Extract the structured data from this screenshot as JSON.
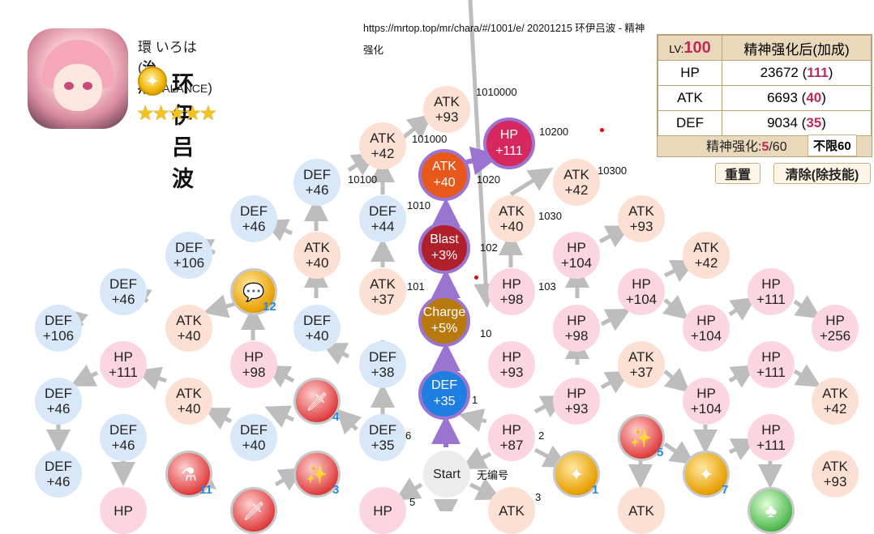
{
  "character": {
    "name_jp": "環 いろは",
    "role": "治疗",
    "type": "/BALANCE",
    "name_cn": "环伊吕波",
    "attribute_glyph": "✦",
    "stars": "★★★★★"
  },
  "url_text": "https://mrtop.top/mr/chara/#/1001/e/ 20201215 环伊吕波 - 精神强化",
  "stats": {
    "lv_label": "LV:",
    "lv_value": "100",
    "header": "精神强化后(加成)",
    "rows": [
      {
        "name": "HP",
        "value": "23672",
        "bonus": "111"
      },
      {
        "name": "ATK",
        "value": "6693",
        "bonus": "40"
      },
      {
        "name": "DEF",
        "value": "9034",
        "bonus": "35"
      }
    ],
    "enhance_label": "精神强化:",
    "enhance_current": "5",
    "enhance_total": "/60",
    "unlimit": "不限60"
  },
  "buttons": {
    "reset": "重置",
    "clear": "清除(除技能)"
  },
  "nodes": [
    {
      "id": "n_atk93_top",
      "t": "ATK",
      "v": "+93",
      "c": "atk"
    },
    {
      "id": "n_atk42_a",
      "t": "ATK",
      "v": "+42",
      "c": "atk"
    },
    {
      "id": "n_hp111_act",
      "t": "HP",
      "v": "+111",
      "c": "act magenta"
    },
    {
      "id": "n_def46_a",
      "t": "DEF",
      "v": "+46",
      "c": "def"
    },
    {
      "id": "n_atk40_act",
      "t": "ATK",
      "v": "+40",
      "c": "act orange"
    },
    {
      "id": "n_atk42_b",
      "t": "ATK",
      "v": "+42",
      "c": "atk"
    },
    {
      "id": "n_def46_b",
      "t": "DEF",
      "v": "+46",
      "c": "def"
    },
    {
      "id": "n_def44",
      "t": "DEF",
      "v": "+44",
      "c": "def"
    },
    {
      "id": "n_atk40_b",
      "t": "ATK",
      "v": "+40",
      "c": "atk"
    },
    {
      "id": "n_atk93_b",
      "t": "ATK",
      "v": "+93",
      "c": "atk"
    },
    {
      "id": "n_def106_a",
      "t": "DEF",
      "v": "+106",
      "c": "def"
    },
    {
      "id": "n_atk40_c",
      "t": "ATK",
      "v": "+40",
      "c": "atk"
    },
    {
      "id": "n_blast",
      "t": "Blast",
      "v": "+3%",
      "c": "act dark-red"
    },
    {
      "id": "n_hp104_a",
      "t": "HP",
      "v": "+104",
      "c": "hp"
    },
    {
      "id": "n_atk42_c",
      "t": "ATK",
      "v": "+42",
      "c": "atk"
    },
    {
      "id": "n_def46_c",
      "t": "DEF",
      "v": "+46",
      "c": "def"
    },
    {
      "id": "n_atk37_a",
      "t": "ATK",
      "v": "+37",
      "c": "atk"
    },
    {
      "id": "n_hp98_a",
      "t": "HP",
      "v": "+98",
      "c": "hp"
    },
    {
      "id": "n_hp104_b",
      "t": "HP",
      "v": "+104",
      "c": "hp"
    },
    {
      "id": "n_hp111_a",
      "t": "HP",
      "v": "+111",
      "c": "hp"
    },
    {
      "id": "n_def106_b",
      "t": "DEF",
      "v": "+106",
      "c": "def"
    },
    {
      "id": "n_atk40_d",
      "t": "ATK",
      "v": "+40",
      "c": "atk"
    },
    {
      "id": "n_def40_a",
      "t": "DEF",
      "v": "+40",
      "c": "def"
    },
    {
      "id": "n_charge",
      "t": "Charge",
      "v": "+5%",
      "c": "act charge"
    },
    {
      "id": "n_hp98_b",
      "t": "HP",
      "v": "+98",
      "c": "hp"
    },
    {
      "id": "n_hp104_c",
      "t": "HP",
      "v": "+104",
      "c": "hp"
    },
    {
      "id": "n_hp256",
      "t": "HP",
      "v": "+256",
      "c": "hp"
    },
    {
      "id": "n_hp111_b",
      "t": "HP",
      "v": "+111",
      "c": "hp"
    },
    {
      "id": "n_hp98_c",
      "t": "HP",
      "v": "+98",
      "c": "hp"
    },
    {
      "id": "n_def38",
      "t": "DEF",
      "v": "+38",
      "c": "def"
    },
    {
      "id": "n_hp93_a",
      "t": "HP",
      "v": "+93",
      "c": "hp"
    },
    {
      "id": "n_atk37_b",
      "t": "ATK",
      "v": "+37",
      "c": "atk"
    },
    {
      "id": "n_hp111_c",
      "t": "HP",
      "v": "+111",
      "c": "hp"
    },
    {
      "id": "n_def46_d",
      "t": "DEF",
      "v": "+46",
      "c": "def"
    },
    {
      "id": "n_atk40_e",
      "t": "ATK",
      "v": "+40",
      "c": "atk"
    },
    {
      "id": "n_def35_act",
      "t": "DEF",
      "v": "+35",
      "c": "act blue"
    },
    {
      "id": "n_hp93_b",
      "t": "HP",
      "v": "+93",
      "c": "hp"
    },
    {
      "id": "n_hp104_d",
      "t": "HP",
      "v": "+104",
      "c": "hp"
    },
    {
      "id": "n_atk42_d",
      "t": "ATK",
      "v": "+42",
      "c": "atk"
    },
    {
      "id": "n_def46_e",
      "t": "DEF",
      "v": "+46",
      "c": "def"
    },
    {
      "id": "n_def40_b",
      "t": "DEF",
      "v": "+40",
      "c": "def"
    },
    {
      "id": "n_def35",
      "t": "DEF",
      "v": "+35",
      "c": "def"
    },
    {
      "id": "n_hp87",
      "t": "HP",
      "v": "+87",
      "c": "hp"
    },
    {
      "id": "n_hp111_d",
      "t": "HP",
      "v": "+111",
      "c": "hp"
    },
    {
      "id": "n_def46_f",
      "t": "DEF",
      "v": "+46",
      "c": "def"
    },
    {
      "id": "n_start",
      "t": "Start",
      "v": "",
      "c": "start"
    },
    {
      "id": "n_atk93_c",
      "t": "ATK",
      "v": "+93",
      "c": "atk"
    },
    {
      "id": "n_hp_bl",
      "t": "HP",
      "v": "",
      "c": "hp"
    },
    {
      "id": "n_hp_bm",
      "t": "HP",
      "v": "",
      "c": "hp"
    },
    {
      "id": "n_atk_bm",
      "t": "ATK",
      "v": "",
      "c": "atk"
    },
    {
      "id": "n_atk_br",
      "t": "ATK",
      "v": "",
      "c": "atk"
    }
  ],
  "icons": [
    {
      "id": "i12",
      "glyph": "💬",
      "c": "icon",
      "label": "12"
    },
    {
      "id": "i4",
      "glyph": "🗡",
      "c": "icon red",
      "label": "4"
    },
    {
      "id": "i3",
      "glyph": "✨",
      "c": "icon red",
      "label": "3"
    },
    {
      "id": "i11",
      "glyph": "⚗",
      "c": "icon red",
      "label": "11"
    },
    {
      "id": "i5",
      "glyph": "✨",
      "c": "icon red",
      "label": "5"
    },
    {
      "id": "i1",
      "glyph": "✦",
      "c": "icon",
      "label": "1"
    },
    {
      "id": "i7",
      "glyph": "✦",
      "c": "icon",
      "label": "7"
    },
    {
      "id": "i_green",
      "glyph": "♣",
      "c": "icon green",
      "label": ""
    },
    {
      "id": "i_red2",
      "glyph": "🗡",
      "c": "icon red",
      "label": ""
    }
  ],
  "codes": {
    "c1010000": "1010000",
    "c101000": "101000",
    "c10200": "10200",
    "c10100": "10100",
    "c1020": "1020",
    "c10300": "10300",
    "c1010": "1010",
    "c1030": "1030",
    "c102": "102",
    "c103": "103",
    "c101": "101",
    "c10": "10",
    "c1": "1",
    "c6": "6",
    "c2": "2",
    "c5": "5",
    "c3": "3",
    "c_none": "无编号"
  }
}
